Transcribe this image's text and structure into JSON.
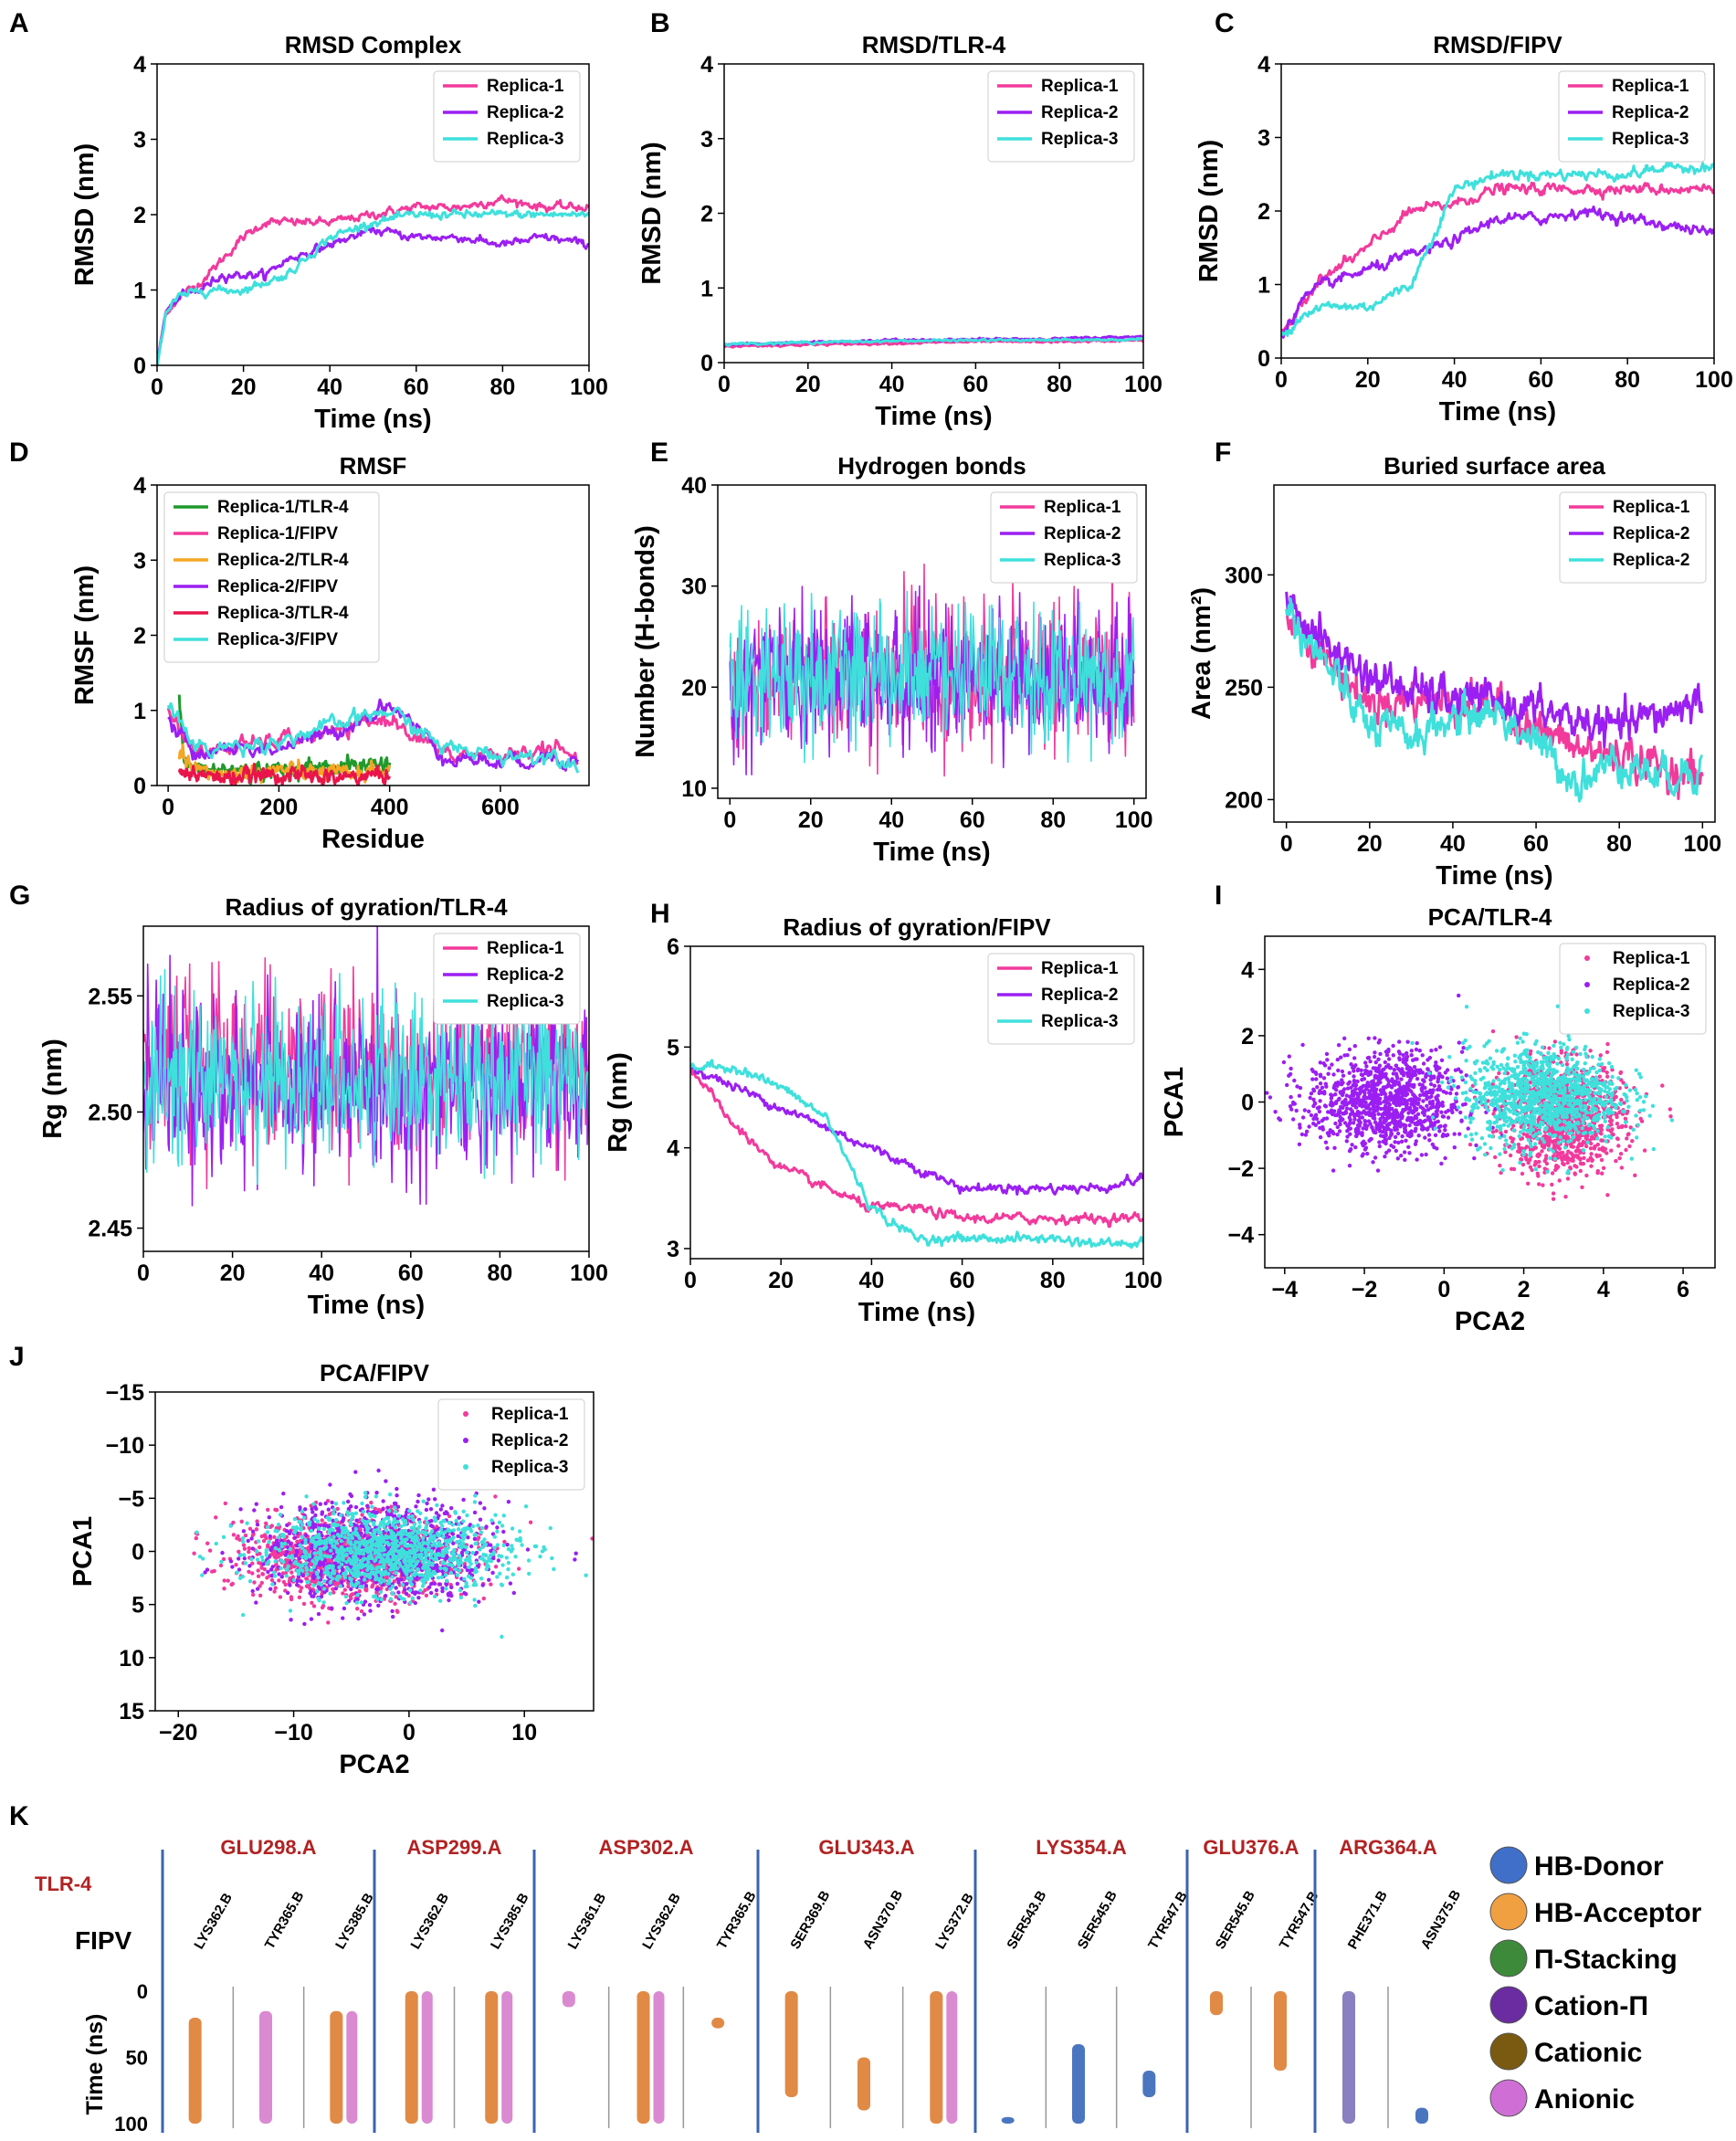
{
  "colors": {
    "r1": "#f23a9c",
    "r2": "#9b1ff2",
    "r3": "#3fe0dc",
    "green": "#1f9a2b",
    "orange": "#f5a623",
    "red": "#e8154a",
    "resid": "#b22222",
    "hb_donor": "#3f6fc8",
    "hb_acceptor": "#f0a040",
    "pi_stacking": "#3d8a3a",
    "cation_pi": "#6a2ca0",
    "cationic": "#7a5a10",
    "anionic": "#cf6fd6",
    "k_orange": "#e08a45",
    "k_pink": "#d98ad0",
    "k_blue": "#4a76c0",
    "k_purple": "#8a7fc0"
  },
  "chart_data": [
    {
      "id": "A",
      "panel_label": "A",
      "type": "line",
      "title": "RMSD Complex",
      "xlabel": "Time (ns)",
      "ylabel": "RMSD (nm)",
      "xlim": [
        0,
        100
      ],
      "ylim": [
        0,
        4
      ],
      "xticks": [
        "0",
        "20",
        "40",
        "60",
        "80",
        "100"
      ],
      "yticks": [
        "0",
        "1",
        "2",
        "3",
        "4"
      ],
      "legend_position": "top-right",
      "series": [
        {
          "name": "Replica-1",
          "color": "r1",
          "x": [
            0,
            2,
            5,
            10,
            15,
            20,
            25,
            30,
            40,
            50,
            60,
            70,
            80,
            90,
            100
          ],
          "y": [
            0,
            0.7,
            0.9,
            1.1,
            1.4,
            1.7,
            1.9,
            1.9,
            1.9,
            2.0,
            2.1,
            2.1,
            2.2,
            2.1,
            2.1
          ]
        },
        {
          "name": "Replica-2",
          "color": "r2",
          "x": [
            0,
            2,
            5,
            10,
            15,
            20,
            25,
            30,
            40,
            50,
            60,
            70,
            80,
            90,
            100
          ],
          "y": [
            0,
            0.7,
            0.9,
            1.0,
            1.2,
            1.2,
            1.2,
            1.4,
            1.6,
            1.8,
            1.7,
            1.7,
            1.6,
            1.7,
            1.6
          ]
        },
        {
          "name": "Replica-3",
          "color": "r3",
          "x": [
            0,
            2,
            5,
            10,
            15,
            20,
            25,
            30,
            40,
            50,
            60,
            70,
            80,
            90,
            100
          ],
          "y": [
            0,
            0.7,
            0.9,
            1.0,
            1.0,
            1.0,
            1.1,
            1.2,
            1.7,
            1.9,
            2.0,
            2.0,
            2.0,
            2.0,
            2.0
          ]
        }
      ]
    },
    {
      "id": "B",
      "panel_label": "B",
      "type": "line",
      "title": "RMSD/TLR-4",
      "xlabel": "Time (ns)",
      "ylabel": "RMSD (nm)",
      "xlim": [
        0,
        100
      ],
      "ylim": [
        0,
        4
      ],
      "xticks": [
        "0",
        "20",
        "40",
        "60",
        "80",
        "100"
      ],
      "yticks": [
        "0",
        "1",
        "2",
        "3",
        "4"
      ],
      "legend_position": "top-right",
      "series": [
        {
          "name": "Replica-1",
          "color": "r1",
          "x": [
            0,
            20,
            40,
            60,
            80,
            100
          ],
          "y": [
            0.22,
            0.24,
            0.26,
            0.28,
            0.28,
            0.3
          ]
        },
        {
          "name": "Replica-2",
          "color": "r2",
          "x": [
            0,
            20,
            40,
            60,
            80,
            100
          ],
          "y": [
            0.24,
            0.27,
            0.3,
            0.31,
            0.32,
            0.35
          ]
        },
        {
          "name": "Replica-3",
          "color": "r3",
          "x": [
            0,
            20,
            40,
            60,
            80,
            100
          ],
          "y": [
            0.25,
            0.27,
            0.29,
            0.3,
            0.3,
            0.31
          ]
        }
      ]
    },
    {
      "id": "C",
      "panel_label": "C",
      "type": "line",
      "title": "RMSD/FIPV",
      "xlabel": "Time (ns)",
      "ylabel": "RMSD (nm)",
      "xlim": [
        0,
        100
      ],
      "ylim": [
        0,
        4
      ],
      "xticks": [
        "0",
        "20",
        "40",
        "60",
        "80",
        "100"
      ],
      "yticks": [
        "0",
        "1",
        "2",
        "3",
        "4"
      ],
      "legend_position": "top-right",
      "series": [
        {
          "name": "Replica-1",
          "color": "r1",
          "x": [
            0,
            5,
            10,
            20,
            30,
            40,
            50,
            60,
            70,
            80,
            90,
            100
          ],
          "y": [
            0.3,
            0.8,
            1.1,
            1.5,
            2.0,
            2.1,
            2.3,
            2.3,
            2.3,
            2.3,
            2.3,
            2.3
          ]
        },
        {
          "name": "Replica-2",
          "color": "r2",
          "x": [
            0,
            5,
            10,
            20,
            30,
            40,
            50,
            60,
            70,
            80,
            90,
            100
          ],
          "y": [
            0.3,
            0.8,
            1.0,
            1.2,
            1.4,
            1.6,
            1.9,
            1.9,
            2.0,
            1.9,
            1.8,
            1.7
          ]
        },
        {
          "name": "Replica-3",
          "color": "r3",
          "x": [
            0,
            5,
            10,
            20,
            30,
            40,
            50,
            60,
            70,
            80,
            90,
            100
          ],
          "y": [
            0.3,
            0.6,
            0.7,
            0.7,
            1.0,
            2.3,
            2.5,
            2.5,
            2.5,
            2.5,
            2.6,
            2.6
          ]
        }
      ]
    },
    {
      "id": "D",
      "panel_label": "D",
      "type": "line",
      "title": "RMSF",
      "xlabel": "Residue",
      "ylabel": "RMSF (nm)",
      "xlim": [
        -20,
        760
      ],
      "ylim": [
        0,
        4
      ],
      "xticks": [
        "0",
        "200",
        "400",
        "600"
      ],
      "yticks": [
        "0",
        "1",
        "2",
        "3",
        "4"
      ],
      "legend_position": "top-left",
      "series": [
        {
          "name": "Replica-1/TLR-4",
          "color": "green",
          "x": [
            20,
            25,
            30,
            50,
            100,
            200,
            300,
            400
          ],
          "y": [
            1.2,
            0.6,
            0.3,
            0.2,
            0.2,
            0.2,
            0.25,
            0.3
          ]
        },
        {
          "name": "Replica-1/FIPV",
          "color": "r1",
          "x": [
            0,
            50,
            100,
            200,
            300,
            400,
            500,
            600,
            700,
            740
          ],
          "y": [
            1.0,
            0.4,
            0.5,
            0.6,
            0.7,
            0.9,
            0.4,
            0.4,
            0.5,
            0.3
          ]
        },
        {
          "name": "Replica-2/TLR-4",
          "color": "orange",
          "x": [
            20,
            50,
            100,
            200,
            300,
            400
          ],
          "y": [
            0.4,
            0.2,
            0.15,
            0.2,
            0.15,
            0.2
          ]
        },
        {
          "name": "Replica-2/FIPV",
          "color": "r2",
          "x": [
            0,
            50,
            100,
            200,
            300,
            400,
            500,
            600,
            700,
            740
          ],
          "y": [
            0.9,
            0.4,
            0.5,
            0.5,
            0.7,
            1.1,
            0.4,
            0.3,
            0.4,
            0.3
          ]
        },
        {
          "name": "Replica-3/TLR-4",
          "color": "red",
          "x": [
            20,
            50,
            100,
            200,
            300,
            400
          ],
          "y": [
            0.2,
            0.15,
            0.1,
            0.15,
            0.1,
            0.15
          ]
        },
        {
          "name": "Replica-3/FIPV",
          "color": "r3",
          "x": [
            0,
            50,
            100,
            200,
            300,
            400,
            500,
            600,
            700,
            740
          ],
          "y": [
            1.1,
            0.5,
            0.5,
            0.6,
            0.8,
            1.0,
            0.5,
            0.4,
            0.4,
            0.3
          ]
        }
      ]
    },
    {
      "id": "E",
      "panel_label": "E",
      "type": "line",
      "title": "Hydrogen bonds",
      "xlabel": "Time (ns)",
      "ylabel": "Number (H-bonds)",
      "xlim": [
        -3,
        103
      ],
      "ylim": [
        9,
        40
      ],
      "xticks": [
        "0",
        "20",
        "40",
        "60",
        "80",
        "100"
      ],
      "yticks": [
        "10",
        "20",
        "30",
        "40"
      ],
      "legend_position": "top-right",
      "series": [
        {
          "name": "Replica-1",
          "color": "r1",
          "x": [
            0,
            100
          ],
          "y": [
            21,
            21
          ]
        },
        {
          "name": "Replica-2",
          "color": "r2",
          "x": [
            0,
            100
          ],
          "y": [
            21,
            21
          ]
        },
        {
          "name": "Replica-3",
          "color": "r3",
          "x": [
            0,
            100
          ],
          "y": [
            21,
            21
          ]
        }
      ]
    },
    {
      "id": "F",
      "panel_label": "F",
      "type": "line",
      "title": "Buried surface area",
      "xlabel": "Time (ns)",
      "ylabel": "Area (nm²)",
      "xlim": [
        -3,
        103
      ],
      "ylim": [
        190,
        340
      ],
      "xticks": [
        "0",
        "20",
        "40",
        "60",
        "80",
        "100"
      ],
      "yticks": [
        "200",
        "250",
        "300"
      ],
      "legend_position": "top-right",
      "series": [
        {
          "name": "Replica-1",
          "color": "r1",
          "x": [
            0,
            10,
            20,
            30,
            40,
            50,
            60,
            70,
            80,
            90,
            100
          ],
          "y": [
            285,
            262,
            242,
            245,
            243,
            242,
            232,
            222,
            220,
            215,
            210
          ]
        },
        {
          "name": "Replica-2",
          "color": "r2",
          "x": [
            0,
            10,
            20,
            30,
            40,
            50,
            60,
            70,
            80,
            90,
            100
          ],
          "y": [
            288,
            268,
            255,
            248,
            245,
            244,
            240,
            235,
            232,
            238,
            245
          ]
        },
        {
          "name": "Replica-2",
          "color": "r3",
          "x": [
            0,
            10,
            20,
            30,
            40,
            50,
            60,
            70,
            80,
            90,
            100
          ],
          "y": [
            285,
            258,
            232,
            228,
            236,
            240,
            225,
            208,
            218,
            210,
            215
          ]
        }
      ]
    },
    {
      "id": "G",
      "panel_label": "G",
      "type": "line",
      "title": "Radius of gyration/TLR-4",
      "xlabel": "Time (ns)",
      "ylabel": "Rg (nm)",
      "xlim": [
        0,
        100
      ],
      "ylim": [
        2.44,
        2.58
      ],
      "xticks": [
        "0",
        "20",
        "40",
        "60",
        "80",
        "100"
      ],
      "yticks": [
        "2.45",
        "2.50",
        "2.55"
      ],
      "legend_position": "top-right",
      "series": [
        {
          "name": "Replica-1",
          "color": "r1",
          "x": [
            0,
            100
          ],
          "y": [
            2.52,
            2.52
          ]
        },
        {
          "name": "Replica-2",
          "color": "r2",
          "x": [
            0,
            100
          ],
          "y": [
            2.51,
            2.51
          ]
        },
        {
          "name": "Replica-3",
          "color": "r3",
          "x": [
            0,
            100
          ],
          "y": [
            2.515,
            2.515
          ]
        }
      ]
    },
    {
      "id": "H",
      "panel_label": "H",
      "type": "line",
      "title": "Radius of gyration/FIPV",
      "xlabel": "Time (ns)",
      "ylabel": "Rg (nm)",
      "xlim": [
        0,
        100
      ],
      "ylim": [
        2.9,
        6
      ],
      "xticks": [
        "0",
        "20",
        "40",
        "60",
        "80",
        "100"
      ],
      "yticks": [
        "3",
        "4",
        "5",
        "6"
      ],
      "legend_position": "top-right",
      "series": [
        {
          "name": "Replica-1",
          "color": "r1",
          "x": [
            0,
            5,
            10,
            20,
            30,
            40,
            50,
            60,
            70,
            80,
            90,
            100
          ],
          "y": [
            4.8,
            4.5,
            4.2,
            3.8,
            3.6,
            3.4,
            3.4,
            3.3,
            3.3,
            3.3,
            3.3,
            3.3
          ]
        },
        {
          "name": "Replica-2",
          "color": "r2",
          "x": [
            0,
            5,
            10,
            20,
            30,
            40,
            50,
            60,
            70,
            80,
            90,
            100
          ],
          "y": [
            4.8,
            4.7,
            4.6,
            4.4,
            4.2,
            4.0,
            3.8,
            3.6,
            3.6,
            3.6,
            3.6,
            3.7
          ]
        },
        {
          "name": "Replica-3",
          "color": "r3",
          "x": [
            0,
            5,
            10,
            20,
            30,
            40,
            50,
            60,
            70,
            80,
            90,
            100
          ],
          "y": [
            4.8,
            4.8,
            4.8,
            4.6,
            4.3,
            3.4,
            3.1,
            3.1,
            3.1,
            3.1,
            3.05,
            3.05
          ]
        }
      ]
    },
    {
      "id": "I",
      "panel_label": "I",
      "type": "scatter",
      "title": "PCA/TLR-4",
      "xlabel": "PCA2",
      "ylabel": "PCA1",
      "xlim": [
        -4.5,
        6.8
      ],
      "ylim": [
        -5,
        5
      ],
      "xticks": [
        "−4",
        "−2",
        "0",
        "2",
        "4",
        "6"
      ],
      "yticks": [
        "−4",
        "−2",
        "0",
        "2",
        "4"
      ],
      "legend_position": "top-right",
      "series": [
        {
          "name": "Replica-1",
          "color": "r1",
          "center": [
            3.0,
            -0.5
          ],
          "spread": [
            1.0,
            1.1
          ]
        },
        {
          "name": "Replica-2",
          "color": "r2",
          "center": [
            -1.5,
            0.0
          ],
          "spread": [
            1.3,
            1.0
          ]
        },
        {
          "name": "Replica-3",
          "color": "r3",
          "center": [
            2.5,
            0.2
          ],
          "spread": [
            1.3,
            1.0
          ]
        }
      ]
    },
    {
      "id": "J",
      "panel_label": "J",
      "type": "scatter",
      "title": "PCA/FIPV",
      "xlabel": "PCA2",
      "ylabel": "PCA1",
      "xlim": [
        -22,
        16
      ],
      "ylim": [
        -15,
        15
      ],
      "y_inverted": true,
      "xticks": [
        "−20",
        "−10",
        "0",
        "10"
      ],
      "yticks": [
        "−15",
        "−10",
        "−5",
        "0",
        "5",
        "10",
        "15"
      ],
      "legend_position": "top-right",
      "series": [
        {
          "name": "Replica-1",
          "color": "r1",
          "center": [
            -5.0,
            0.5
          ],
          "spread": [
            6.5,
            2.5
          ]
        },
        {
          "name": "Replica-2",
          "color": "r2",
          "center": [
            -3.0,
            0.0
          ],
          "spread": [
            6.5,
            3.0
          ]
        },
        {
          "name": "Replica-3",
          "color": "r3",
          "center": [
            -2.0,
            0.0
          ],
          "spread": [
            7.0,
            2.5
          ]
        }
      ]
    }
  ],
  "panel_k": {
    "label": "K",
    "tlr_label": "TLR-4",
    "fipv_label": "FIPV",
    "ylabel": "Time (ns)",
    "yticks": [
      "0",
      "50",
      "100"
    ],
    "groups": [
      {
        "residue": "GLU298.A",
        "partners": [
          "LYS362.B",
          "TYR365.B",
          "LYS385.B"
        ]
      },
      {
        "residue": "ASP299.A",
        "partners": [
          "LYS362.B",
          "LYS385.B"
        ]
      },
      {
        "residue": "ASP302.A",
        "partners": [
          "LYS361.B",
          "LYS362.B",
          "TYR365.B"
        ]
      },
      {
        "residue": "GLU343.A",
        "partners": [
          "SER369.B",
          "ASN370.B",
          "LYS372.B"
        ]
      },
      {
        "residue": "LYS354.A",
        "partners": [
          "SER543.B",
          "SER545.B",
          "TYR547.B"
        ]
      },
      {
        "residue": "GLU376.A",
        "partners": [
          "SER545.B",
          "TYR547.B"
        ]
      },
      {
        "residue": "ARG364.A",
        "partners": [
          "PHE371.B",
          "ASN375.B"
        ]
      }
    ],
    "legend": [
      {
        "label": "HB-Donor",
        "color": "hb_donor"
      },
      {
        "label": "HB-Acceptor",
        "color": "hb_acceptor"
      },
      {
        "label": "Π-Stacking",
        "color": "pi_stacking"
      },
      {
        "label": "Cation-Π",
        "color": "cation_pi"
      },
      {
        "label": "Cationic",
        "color": "cationic"
      },
      {
        "label": "Anionic",
        "color": "anionic"
      }
    ]
  }
}
